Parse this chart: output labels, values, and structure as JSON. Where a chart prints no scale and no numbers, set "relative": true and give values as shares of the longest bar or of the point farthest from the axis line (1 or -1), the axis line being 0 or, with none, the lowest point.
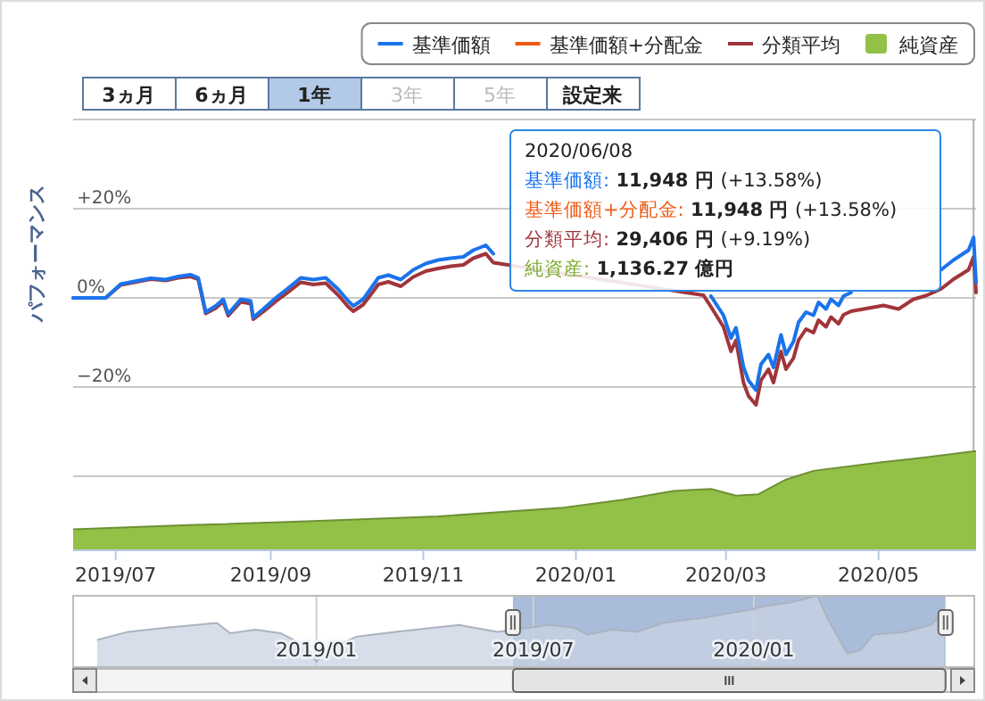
{
  "chart_data": [
    {
      "type": "other",
      "annotations": [
        "3ヵ月",
        "6ヵ月",
        "1年",
        "3年",
        "5年",
        "設定来"
      ]
    },
    {
      "type": "line",
      "ylabel": "パフォーマンス",
      "legend": "top right",
      "grid": "y",
      "tick_labels": "y",
      "marker": "none",
      "xlim": [
        "2019-06-14",
        "2020-06-09"
      ],
      "ylim": [
        -40,
        40
      ],
      "yticks": [
        {
          "value": -40,
          "label": null
        },
        {
          "value": -20,
          "label": "−20%"
        },
        {
          "value": 0,
          "label": "0%"
        },
        {
          "value": 20,
          "label": "+20%"
        },
        {
          "value": 40,
          "label": null
        }
      ],
      "x": [
        "2019-06-14",
        "2019-06-27",
        "2019-07-03",
        "2019-07-15",
        "2019-07-21",
        "2019-07-26",
        "2019-07-31",
        "2019-08-03",
        "2019-08-06",
        "2019-08-10",
        "2019-08-13",
        "2019-08-15",
        "2019-08-20",
        "2019-08-24",
        "2019-08-25",
        "2019-08-29",
        "2019-09-03",
        "2019-09-08",
        "2019-09-13",
        "2019-09-18",
        "2019-09-23",
        "2019-09-28",
        "2019-10-02",
        "2019-10-04",
        "2019-10-08",
        "2019-10-14",
        "2019-10-18",
        "2019-10-23",
        "2019-10-28",
        "2019-11-02",
        "2019-11-07",
        "2019-11-12",
        "2019-11-17",
        "2019-11-21",
        "2019-11-26",
        "2019-11-29",
        "2020-02-21",
        "2020-02-24",
        "2020-02-29",
        "2020-03-03",
        "2020-03-05",
        "2020-03-08",
        "2020-03-10",
        "2020-03-13",
        "2020-03-15",
        "2020-03-18",
        "2020-03-20",
        "2020-03-23",
        "2020-03-25",
        "2020-03-28",
        "2020-03-30",
        "2020-04-02",
        "2020-04-05",
        "2020-04-07",
        "2020-04-10",
        "2020-04-12",
        "2020-04-15",
        "2020-04-17",
        "2020-04-20",
        "2020-05-03",
        "2020-05-09",
        "2020-05-15",
        "2020-05-20",
        "2020-05-26",
        "2020-05-31",
        "2020-06-06",
        "2020-06-08",
        "2020-06-09"
      ],
      "series": [
        {
          "name": "基準価額",
          "color": "#1a73ec",
          "values": [
            0,
            0,
            3.1,
            4.4,
            4.1,
            4.8,
            5.2,
            4.5,
            -3.2,
            -1.8,
            -0.3,
            -3.6,
            -0.3,
            -0.7,
            -4.4,
            -2.5,
            0,
            2.2,
            4.5,
            4.1,
            4.5,
            1.9,
            -0.7,
            -1.8,
            -0.3,
            4.5,
            5.1,
            4.1,
            6.3,
            7.7,
            8.5,
            8.9,
            9.2,
            10.7,
            11.8,
            9.9,
            null,
            0.4,
            -3.9,
            -9.0,
            -6.7,
            -15.5,
            -18.5,
            -20.7,
            -14.9,
            -12.7,
            -15.6,
            -8.3,
            -12.7,
            -9.8,
            -5.5,
            -3.2,
            -3.9,
            -1.0,
            -2.5,
            -0.3,
            -1.7,
            0.4,
            1.2,
            null,
            null,
            null,
            null,
            6.3,
            8.5,
            10.7,
            13.58,
            3.4
          ]
        },
        {
          "name": "基準価額+分配金",
          "color": "#f05a14",
          "values": [
            null,
            null,
            null,
            null,
            null,
            null,
            null,
            null,
            null,
            null,
            null,
            null,
            null,
            null,
            null,
            null,
            null,
            null,
            null,
            null,
            null,
            null,
            null,
            null,
            null,
            null,
            null,
            null,
            null,
            null,
            null,
            null,
            null,
            null,
            null,
            null,
            null,
            null,
            null,
            null,
            null,
            null,
            null,
            null,
            null,
            null,
            null,
            null,
            null,
            null,
            null,
            null,
            null,
            null,
            null,
            null,
            null,
            null,
            null,
            null,
            null,
            null,
            null,
            null,
            null,
            null,
            null,
            null
          ]
        },
        {
          "name": "分類平均",
          "color": "#a0353a",
          "values": [
            0,
            0,
            2.9,
            4.2,
            3.9,
            4.5,
            4.8,
            4.2,
            -3.5,
            -2.3,
            -0.8,
            -4.0,
            -0.9,
            -1.3,
            -4.8,
            -3.1,
            -0.8,
            1.3,
            3.5,
            3.0,
            3.3,
            0.6,
            -2.0,
            -3.0,
            -1.5,
            3.0,
            3.6,
            2.6,
            4.7,
            6.0,
            6.6,
            7.1,
            7.4,
            8.9,
            9.9,
            7.9,
            0.6,
            -2.0,
            -6.5,
            -12.0,
            -9.5,
            -19.0,
            -22.0,
            -24.0,
            -18.5,
            -16.0,
            -19.0,
            -12.0,
            -16.0,
            -13.5,
            -9.5,
            -7.0,
            -7.8,
            -5.0,
            -6.5,
            -4.3,
            -5.8,
            -3.8,
            -3.0,
            -1.7,
            -2.5,
            -0.3,
            0.5,
            2.0,
            4.2,
            6.3,
            9.19,
            1.2
          ]
        }
      ],
      "ref_lines": [
        {
          "axis": "x",
          "value": "2020-06-08",
          "label": null,
          "color": "#b0b0b0"
        }
      ],
      "annotations": [
        "2020/06/08",
        "基準価額: 11,948 円 (+13.58%)",
        "基準価額+分配金: 11,948 円 (+13.58%)",
        "分類平均: 29,406 円 (+9.19%)",
        "純資産: 1,136.27 億円"
      ]
    },
    {
      "type": "area",
      "relative": true,
      "legend": "top right",
      "tick_labels": "x",
      "xlim": [
        "2019-06-14",
        "2020-06-09"
      ],
      "xticks": [
        {
          "value": "2019-07-01",
          "label": "2019/07"
        },
        {
          "value": "2019-09-01",
          "label": "2019/09"
        },
        {
          "value": "2019-11-01",
          "label": "2019/11"
        },
        {
          "value": "2020-01-01",
          "label": "2020/01"
        },
        {
          "value": "2020-03-01",
          "label": "2020/03"
        },
        {
          "value": "2020-05-01",
          "label": "2020/05"
        }
      ],
      "series": [
        {
          "name": "純資産",
          "color": "#93c047",
          "x": [
            "2019-06-14",
            "2019-07-30",
            "2019-09-18",
            "2019-11-07",
            "2019-12-27",
            "2020-01-20",
            "2020-02-09",
            "2020-02-24",
            "2020-03-05",
            "2020-03-14",
            "2020-03-25",
            "2020-04-05",
            "2020-05-03",
            "2020-05-20",
            "2020-06-08",
            "2020-06-09"
          ],
          "values": [
            0.205,
            0.247,
            0.288,
            0.336,
            0.425,
            0.507,
            0.596,
            0.616,
            0.548,
            0.562,
            0.712,
            0.801,
            0.89,
            0.938,
            1.0,
            1.0
          ]
        }
      ]
    },
    {
      "type": "area",
      "relative": true,
      "grid": "x",
      "tick_labels": "x",
      "xlim": [
        "2018-06-12",
        "2020-07-03"
      ],
      "xticks": [
        {
          "value": "2019-01-01",
          "label": "2019/01"
        },
        {
          "value": "2019-07-01",
          "label": "2019/07"
        },
        {
          "value": "2020-01-01",
          "label": "2020/01"
        }
      ],
      "bands": [
        {
          "axis": "x",
          "from": "2019-06-14",
          "to": "2020-06-09",
          "label": null,
          "color": "#6f8fbf"
        }
      ],
      "series": [
        {
          "color": "#c9d3e2",
          "x": [
            "2018-07-02",
            "2018-07-28",
            "2018-08-29",
            "2018-10-10",
            "2018-10-21",
            "2018-11-11",
            "2018-12-02",
            "2018-12-24",
            "2019-01-01",
            "2019-01-09",
            "2019-02-04",
            "2019-03-08",
            "2019-04-09",
            "2019-04-30",
            "2019-06-01",
            "2019-06-28",
            "2019-07-14",
            "2019-08-04",
            "2019-08-15",
            "2019-09-05",
            "2019-09-26",
            "2019-10-17",
            "2019-11-18",
            "2019-12-31",
            "2020-01-10",
            "2020-02-01",
            "2020-02-23",
            "2020-03-03",
            "2020-03-19",
            "2020-03-30",
            "2020-04-10",
            "2020-05-06",
            "2020-05-28",
            "2020-06-08"
          ],
          "values": [
            0.381,
            0.495,
            0.552,
            0.619,
            0.476,
            0.524,
            0.476,
            0.286,
            0.076,
            0.238,
            0.429,
            0.495,
            0.552,
            0.59,
            0.495,
            0.552,
            0.59,
            0.552,
            0.457,
            0.524,
            0.495,
            0.619,
            0.686,
            0.81,
            0.857,
            0.905,
            1.0,
            0.667,
            0.19,
            0.238,
            0.457,
            0.495,
            0.59,
            0.781
          ]
        }
      ]
    }
  ]
}
